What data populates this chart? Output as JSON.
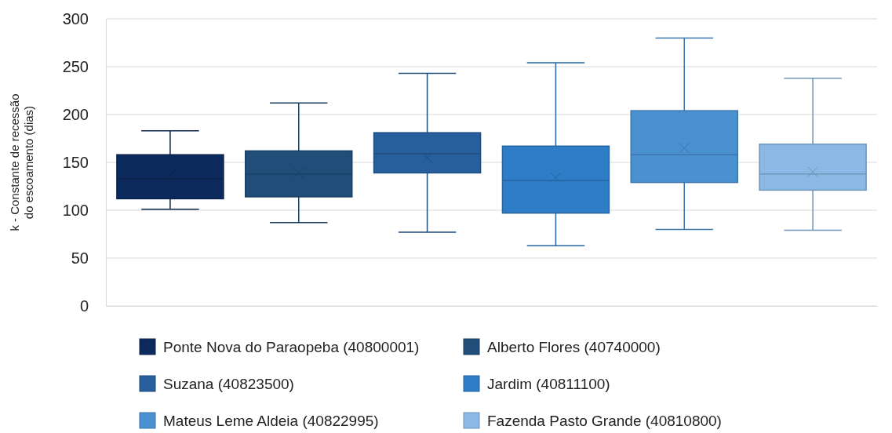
{
  "chart_data": {
    "type": "box",
    "ylabel": "k - Constante de recessão do escoamento (dias)",
    "categories": [
      null,
      null,
      null,
      null,
      null,
      null
    ],
    "ylim": [
      0,
      300
    ],
    "yticks": [
      0,
      50,
      100,
      150,
      200,
      250,
      300
    ],
    "grid": "y",
    "legend": "bottom",
    "marker": "cross",
    "series": [
      {
        "name": "Ponte Nova do Paraopeba (40800001)",
        "color": "#0c2a5c",
        "boxes": [
          {
            "low": 101,
            "q1": 112,
            "median": 133,
            "q3": 158,
            "high": 183,
            "mean": 137
          },
          null,
          null,
          null,
          null,
          null
        ]
      },
      {
        "name": "Alberto Flores (40740000)",
        "color": "#1f4e79",
        "boxes": [
          null,
          {
            "low": 87,
            "q1": 114,
            "median": 138,
            "q3": 162,
            "high": 212,
            "mean": 139
          },
          null,
          null,
          null,
          null
        ]
      },
      {
        "name": "Suzana (40823500)",
        "color": "#265f9c",
        "boxes": [
          null,
          null,
          {
            "low": 77,
            "q1": 139,
            "median": 159,
            "q3": 181,
            "high": 243,
            "mean": 155
          },
          null,
          null,
          null
        ]
      },
      {
        "name": "Jardim (40811100)",
        "color": "#2e7dc6",
        "boxes": [
          null,
          null,
          null,
          {
            "low": 63,
            "q1": 97,
            "median": 131,
            "q3": 167,
            "high": 254,
            "mean": 134
          },
          null,
          null
        ]
      },
      {
        "name": "Mateus Leme Aldeia (40822995)",
        "color": "#4a91d2",
        "boxes": [
          null,
          null,
          null,
          null,
          {
            "low": 80,
            "q1": 129,
            "median": 158,
            "q3": 204,
            "high": 280,
            "mean": 165
          },
          null
        ]
      },
      {
        "name": "Fazenda Pasto Grande (40810800)",
        "color": "#8ab9e5",
        "boxes": [
          null,
          null,
          null,
          null,
          null,
          {
            "low": 79,
            "q1": 121,
            "median": 138,
            "q3": 169,
            "high": 238,
            "mean": 140
          }
        ]
      }
    ]
  }
}
